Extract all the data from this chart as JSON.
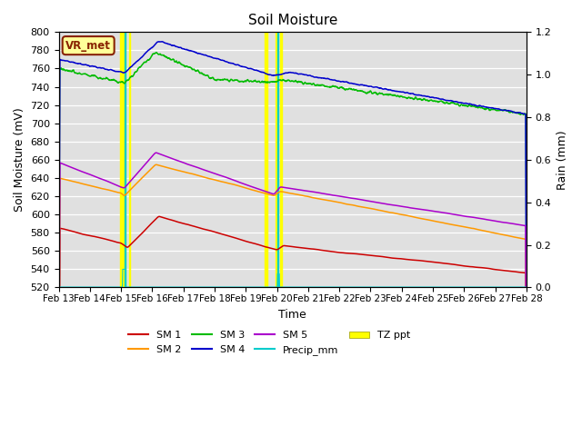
{
  "title": "Soil Moisture",
  "xlabel": "Time",
  "ylabel_left": "Soil Moisture (mV)",
  "ylabel_right": "Rain (mm)",
  "ylim_left": [
    520,
    800
  ],
  "ylim_right": [
    0.0,
    1.2
  ],
  "xtick_labels": [
    "Feb 13",
    "Feb 14",
    "Feb 15",
    "Feb 16",
    "Feb 17",
    "Feb 18",
    "Feb 19",
    "Feb 20",
    "Feb 21",
    "Feb 22",
    "Feb 23",
    "Feb 24",
    "Feb 25",
    "Feb 26",
    "Feb 27",
    "Feb 28"
  ],
  "colors": {
    "SM1": "#cc0000",
    "SM2": "#ff9900",
    "SM3": "#00bb00",
    "SM4": "#0000cc",
    "SM5": "#aa00cc",
    "Precip": "#00cccc",
    "TZ_ppt": "#ffff00",
    "background": "#e0e0e0",
    "annotation_box": "#ffff99",
    "annotation_border": "#882200"
  },
  "annotation_text": "VR_met"
}
